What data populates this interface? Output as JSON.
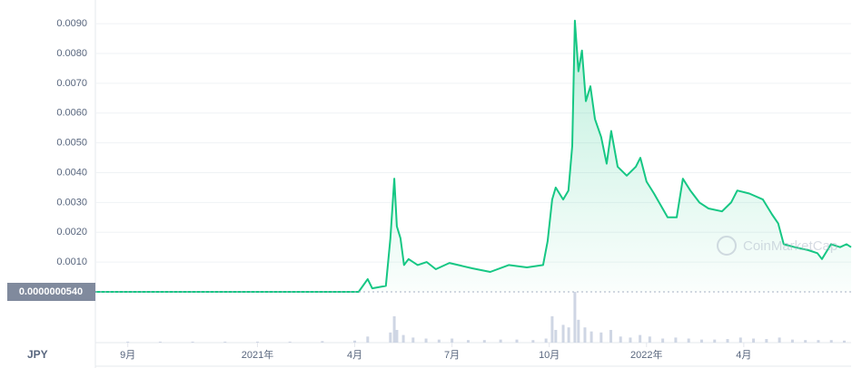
{
  "chart_data": {
    "type": "area",
    "currency": "JPY",
    "watermark": "CoinMarketCap",
    "current_price": {
      "value": 5.4e-08,
      "label": "0.0000000540"
    },
    "ylim": [
      0,
      0.0095
    ],
    "yticks": [
      {
        "value": 0.001,
        "label": "0.0010"
      },
      {
        "value": 0.002,
        "label": "0.0020"
      },
      {
        "value": 0.003,
        "label": "0.0030"
      },
      {
        "value": 0.004,
        "label": "0.0040"
      },
      {
        "value": 0.005,
        "label": "0.0050"
      },
      {
        "value": 0.006,
        "label": "0.0060"
      },
      {
        "value": 0.007,
        "label": "0.0070"
      },
      {
        "value": 0.008,
        "label": "0.0080"
      },
      {
        "value": 0.009,
        "label": "0.0090"
      }
    ],
    "xlim": [
      0,
      23.31
    ],
    "xticks": [
      {
        "value": 1,
        "label": "9月"
      },
      {
        "value": 5,
        "label": "2021年"
      },
      {
        "value": 8,
        "label": "4月"
      },
      {
        "value": 11,
        "label": "7月"
      },
      {
        "value": 14,
        "label": "10月"
      },
      {
        "value": 17,
        "label": "2022年"
      },
      {
        "value": 20,
        "label": "4月"
      }
    ],
    "grid": true,
    "series": [
      {
        "color": "#16c784",
        "x": [
          0,
          4.06,
          8.12,
          8.4,
          8.54,
          8.96,
          9.1,
          9.22,
          9.3,
          9.41,
          9.52,
          9.66,
          9.94,
          10.22,
          10.5,
          10.92,
          11.62,
          12.18,
          12.75,
          13.31,
          13.81,
          13.95,
          14.09,
          14.2,
          14.43,
          14.59,
          14.71,
          14.79,
          14.9,
          15.01,
          15.13,
          15.27,
          15.41,
          15.6,
          15.77,
          15.91,
          16.11,
          16.39,
          16.67,
          16.81,
          17.0,
          17.23,
          17.65,
          17.93,
          18.12,
          18.35,
          18.63,
          18.91,
          19.33,
          19.61,
          19.8,
          20.17,
          20.59,
          20.87,
          21.06,
          21.23,
          21.57,
          21.99,
          22.27,
          22.41,
          22.69,
          22.97,
          23.17,
          23.31
        ],
        "values": [
          5.4e-08,
          5.4e-08,
          5.4e-08,
          0.00043,
          0.00012,
          0.0002,
          0.0018,
          0.0038,
          0.0022,
          0.0018,
          0.0009,
          0.0011,
          0.0009,
          0.001,
          0.00076,
          0.00097,
          0.00079,
          0.00067,
          0.0009,
          0.00082,
          0.0009,
          0.0017,
          0.0031,
          0.0035,
          0.0031,
          0.0034,
          0.0049,
          0.0091,
          0.0074,
          0.0081,
          0.0064,
          0.0069,
          0.0058,
          0.0052,
          0.0043,
          0.0054,
          0.0042,
          0.0039,
          0.0042,
          0.0045,
          0.0037,
          0.0033,
          0.0025,
          0.0025,
          0.0038,
          0.0034,
          0.003,
          0.0028,
          0.0027,
          0.003,
          0.0034,
          0.0033,
          0.0031,
          0.0026,
          0.0023,
          0.0016,
          0.0015,
          0.0014,
          0.0013,
          0.0011,
          0.0016,
          0.0015,
          0.0016,
          0.0015
        ]
      }
    ],
    "volume": {
      "color": "#cfd6e4",
      "ylim": [
        0,
        100
      ],
      "x": [
        1,
        2,
        3,
        4,
        5,
        6,
        7,
        8,
        8.4,
        9.1,
        9.22,
        9.3,
        9.5,
        9.8,
        10.2,
        10.6,
        11,
        11.5,
        12,
        12.5,
        13,
        13.5,
        13.9,
        14.09,
        14.2,
        14.43,
        14.6,
        14.79,
        14.9,
        15.1,
        15.3,
        15.6,
        15.9,
        16.2,
        16.5,
        16.8,
        17.1,
        17.5,
        17.9,
        18.3,
        18.7,
        19.1,
        19.5,
        19.9,
        20.3,
        20.7,
        21.1,
        21.5,
        21.9,
        22.3,
        22.7,
        23.1
      ],
      "values": [
        2,
        2,
        2,
        2,
        2,
        2,
        3,
        4,
        12,
        20,
        52,
        25,
        15,
        10,
        8,
        6,
        8,
        5,
        5,
        6,
        6,
        5,
        8,
        52,
        25,
        35,
        30,
        100,
        45,
        30,
        22,
        20,
        25,
        12,
        10,
        15,
        12,
        8,
        10,
        8,
        6,
        6,
        7,
        10,
        8,
        7,
        10,
        6,
        5,
        5,
        5,
        4
      ]
    }
  }
}
